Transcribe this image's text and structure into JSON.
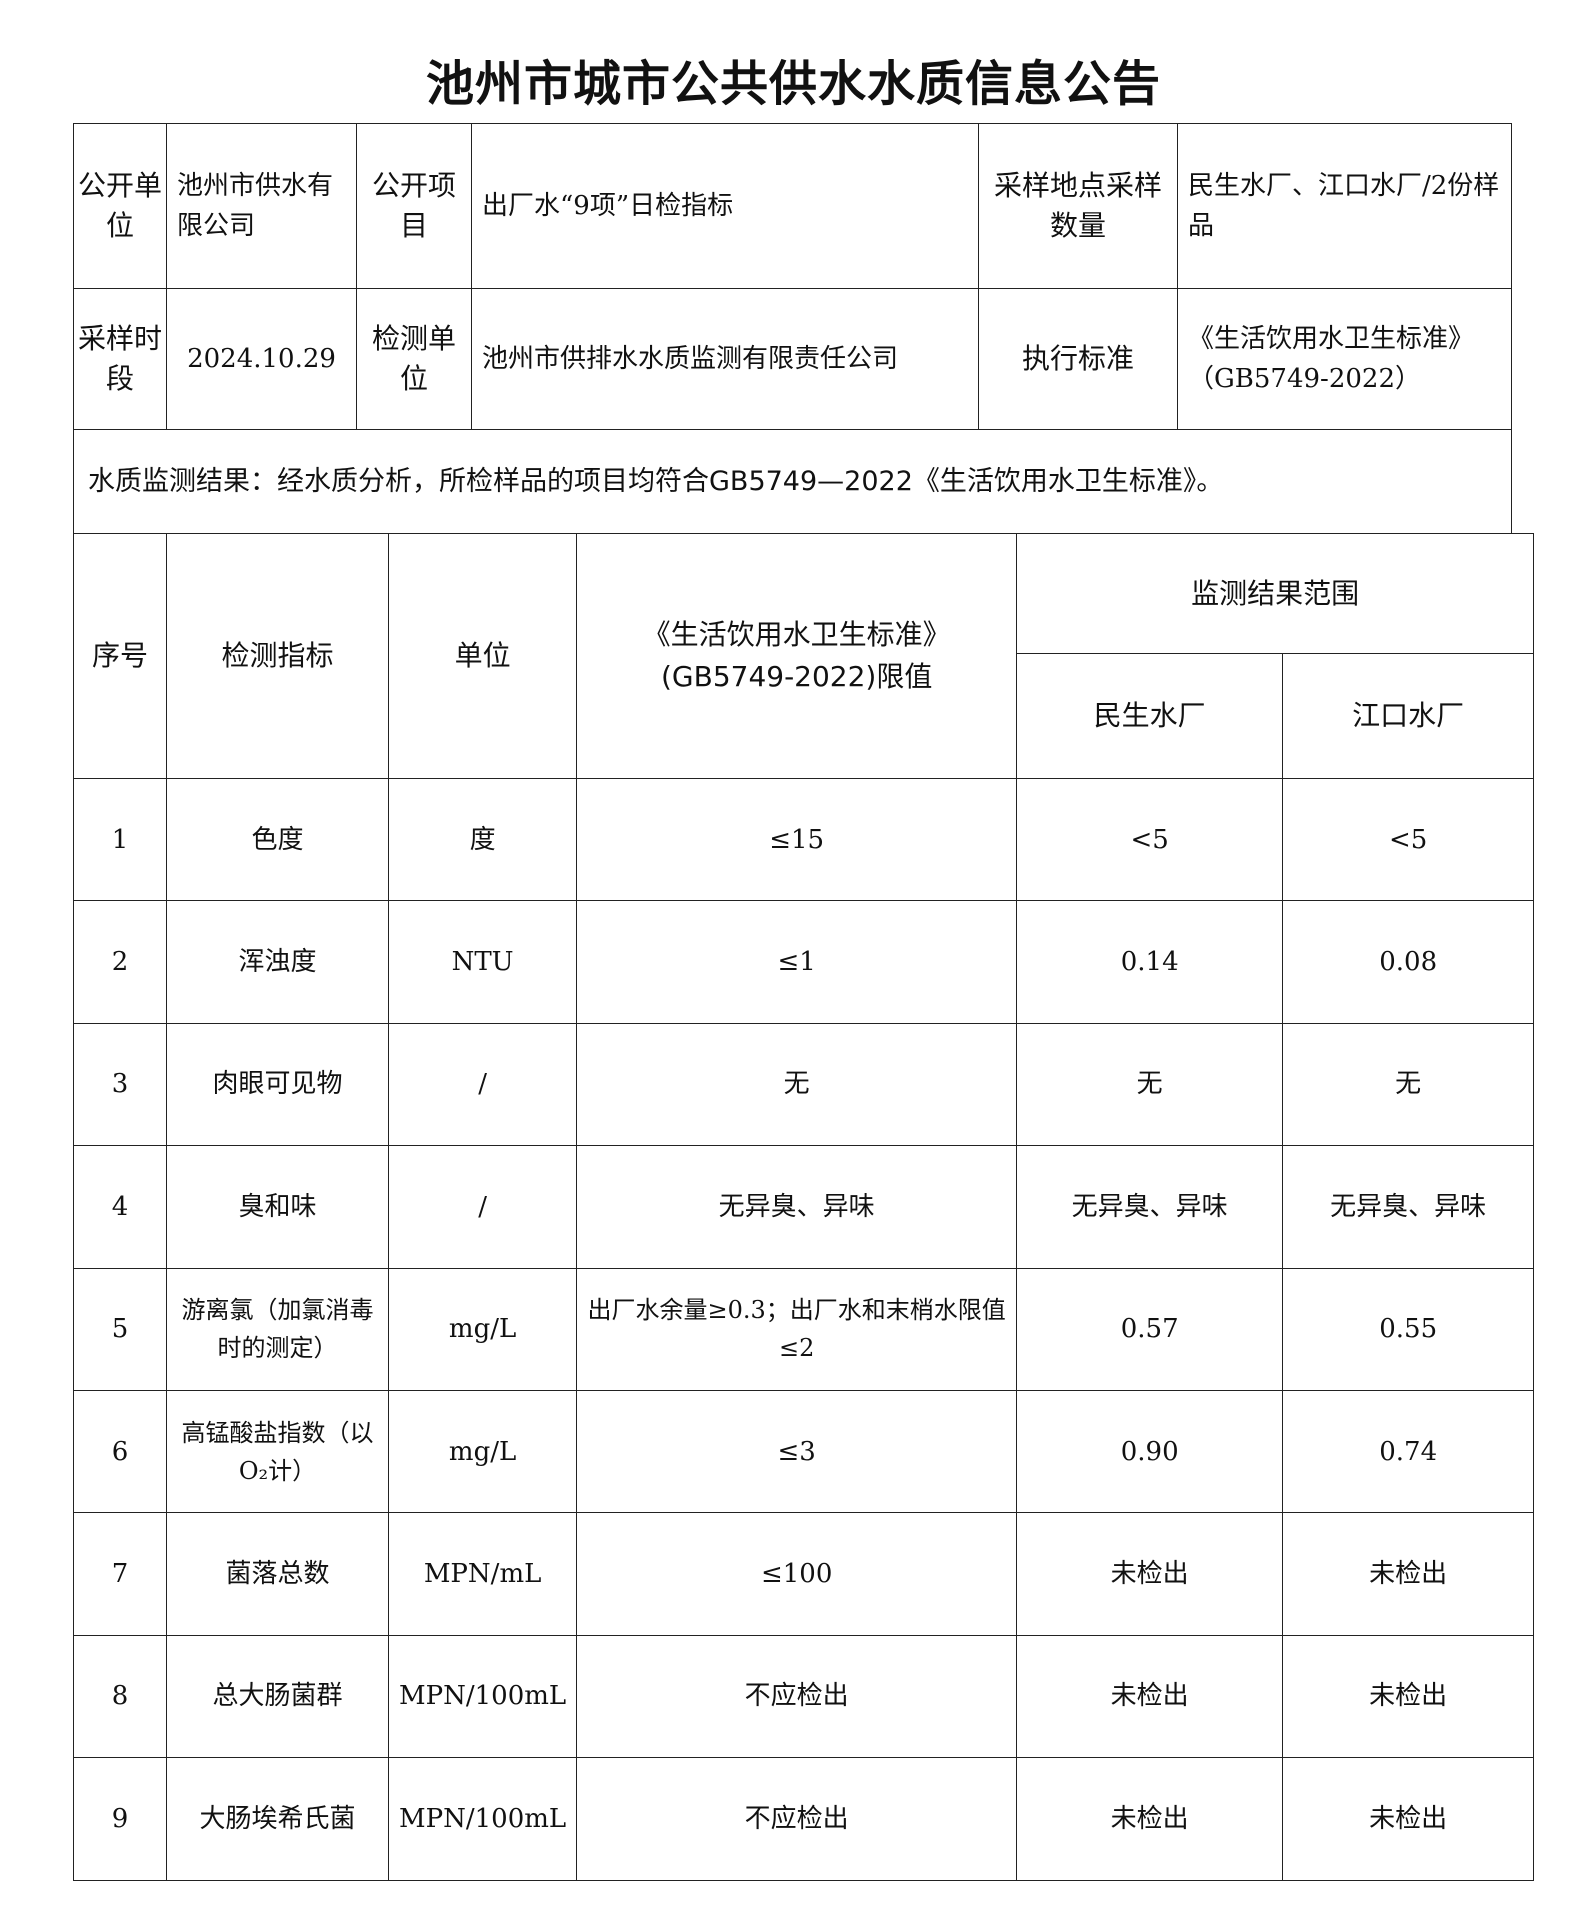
{
  "title": "池州市城市公共供水水质信息公告",
  "info": {
    "publisher_label": "公开单位",
    "publisher": "池州市供水有限公司",
    "item_label": "公开项目",
    "item": "出厂水“9项”日检指标",
    "sampling_label": "采样地点采样数量",
    "sampling": "民生水厂、江口水厂/2份样品",
    "period_label": "采样时段",
    "period": "2024.10.29",
    "lab_label": "检测单位",
    "lab": "池州市供排水水质监测有限责任公司",
    "standard_label": "执行标准",
    "standard": "《生活饮用水卫生标准》（GB5749-2022）"
  },
  "summary": "水质监测结果：经水质分析，所检样品的项目均符合GB5749—2022《生活饮用水卫生标准》。",
  "results": {
    "headers": {
      "no": "序号",
      "indicator": "检测指标",
      "unit": "单位",
      "limit": "《生活饮用水卫生标准》(GB5749-2022)限值",
      "range": "监测结果范围",
      "plant1": "民生水厂",
      "plant2": "江口水厂"
    },
    "rows": [
      {
        "no": "1",
        "indicator": "色度",
        "unit": "度",
        "limit": "≤15",
        "plant1": "<5",
        "plant2": "<5"
      },
      {
        "no": "2",
        "indicator": "浑浊度",
        "unit": "NTU",
        "limit": "≤1",
        "plant1": "0.14",
        "plant2": "0.08"
      },
      {
        "no": "3",
        "indicator": "肉眼可见物",
        "unit": "/",
        "limit": "无",
        "plant1": "无",
        "plant2": "无"
      },
      {
        "no": "4",
        "indicator": "臭和味",
        "unit": "/",
        "limit": "无异臭、异味",
        "plant1": "无异臭、异味",
        "plant2": "无异臭、异味"
      },
      {
        "no": "5",
        "indicator": "游离氯（加氯消毒时的测定）",
        "unit": "mg/L",
        "limit": "出厂水余量≥0.3；出厂水和末梢水限值≤2",
        "plant1": "0.57",
        "plant2": "0.55"
      },
      {
        "no": "6",
        "indicator": "高锰酸盐指数（以O₂计）",
        "unit": "mg/L",
        "limit": "≤3",
        "plant1": "0.90",
        "plant2": "0.74"
      },
      {
        "no": "7",
        "indicator": "菌落总数",
        "unit": "MPN/mL",
        "limit": "≤100",
        "plant1": "未检出",
        "plant2": "未检出"
      },
      {
        "no": "8",
        "indicator": "总大肠菌群",
        "unit": "MPN/100mL",
        "limit": "不应检出",
        "plant1": "未检出",
        "plant2": "未检出"
      },
      {
        "no": "9",
        "indicator": "大肠埃希氏菌",
        "unit": "MPN/100mL",
        "limit": "不应检出",
        "plant1": "未检出",
        "plant2": "未检出"
      }
    ]
  }
}
